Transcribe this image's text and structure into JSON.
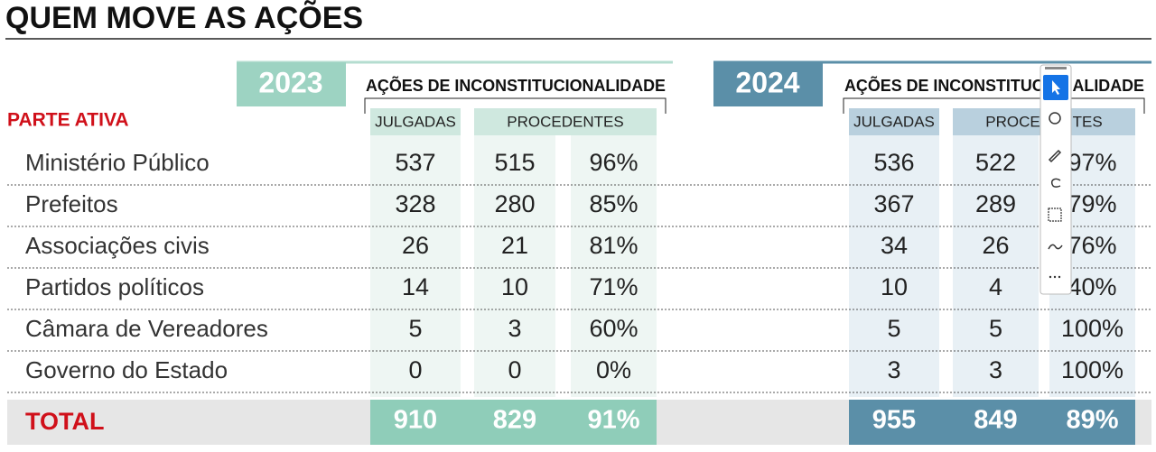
{
  "title": "QUEM MOVE AS AÇÕES",
  "side_label": "PARTE ATIVA",
  "row_labels": [
    "Ministério Público",
    "Prefeitos",
    "Associações civis",
    "Partidos políticos",
    "Câmara de Vereadores",
    "Governo do Estado"
  ],
  "total_label": "TOTAL",
  "blocks": [
    {
      "year": "2023",
      "header": "AÇÕES DE INCONSTITUCIONALIDADE",
      "columns": [
        "JULGADAS",
        "PROCEDENTES"
      ],
      "rows": [
        [
          "537",
          "515",
          "96%"
        ],
        [
          "328",
          "280",
          "85%"
        ],
        [
          "26",
          "21",
          "81%"
        ],
        [
          "14",
          "10",
          "71%"
        ],
        [
          "5",
          "3",
          "60%"
        ],
        [
          "0",
          "0",
          "0%"
        ]
      ],
      "total": [
        "910",
        "829",
        "91%"
      ]
    },
    {
      "year": "2024",
      "header": "AÇÕES DE INCONSTITUCIONALIDADE",
      "columns": [
        "JULGADAS",
        "PROCEDENTES"
      ],
      "rows": [
        [
          "536",
          "522",
          "97%"
        ],
        [
          "367",
          "289",
          "79%"
        ],
        [
          "34",
          "26",
          "76%"
        ],
        [
          "10",
          "4",
          "40%"
        ],
        [
          "5",
          "5",
          "100%"
        ],
        [
          "3",
          "3",
          "100%"
        ]
      ],
      "total": [
        "955",
        "849",
        "89%"
      ]
    }
  ]
}
